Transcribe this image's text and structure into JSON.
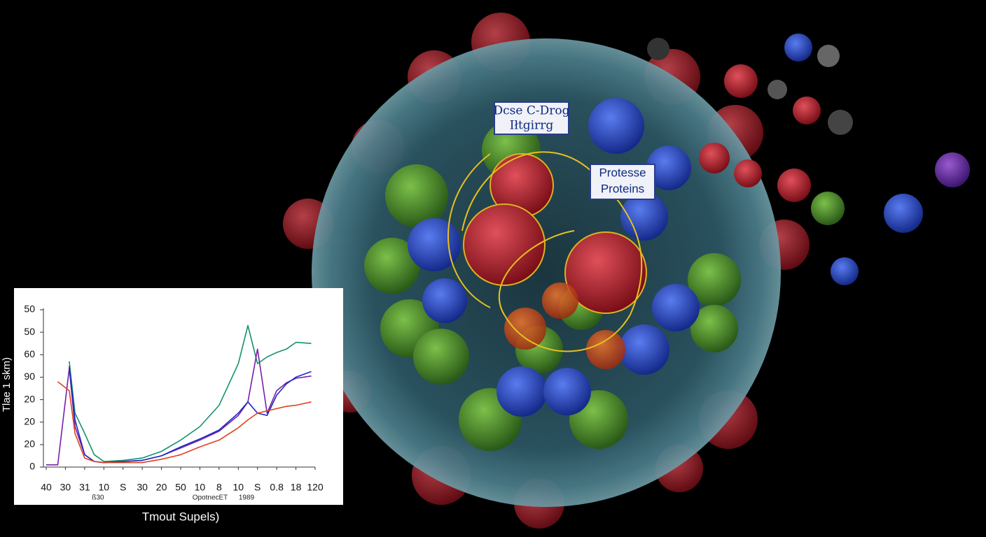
{
  "annotations": [
    {
      "lines": [
        "Dcse C-Drog",
        "Iłtgirrg"
      ]
    },
    {
      "lines": [
        "Protesse",
        "Proteins"
      ]
    }
  ],
  "chart_data": {
    "type": "line",
    "ylabel": "Tlae 1 skm)",
    "xlabel": "Tmout Supels)",
    "x_annotations": [
      "ß30",
      "OpotnecET",
      "1989"
    ],
    "xlim": [
      0,
      14
    ],
    "ylim": [
      0,
      70
    ],
    "xticks": [
      {
        "value": 0,
        "label": "40"
      },
      {
        "value": 1,
        "label": "30"
      },
      {
        "value": 2,
        "label": "31"
      },
      {
        "value": 3,
        "label": "10"
      },
      {
        "value": 4,
        "label": "S"
      },
      {
        "value": 5,
        "label": "30"
      },
      {
        "value": 6,
        "label": "20"
      },
      {
        "value": 7,
        "label": "50"
      },
      {
        "value": 8,
        "label": "10"
      },
      {
        "value": 9,
        "label": "8"
      },
      10,
      {
        "value": 11,
        "label": "S"
      },
      {
        "value": 12,
        "label": "0.8"
      },
      {
        "value": 13,
        "label": "18"
      },
      {
        "value": 14,
        "label": "120"
      }
    ],
    "yticks": [
      0,
      {
        "value": 10,
        "label": "20"
      },
      {
        "value": 20,
        "label": "20"
      },
      {
        "value": 30,
        "label": "20"
      },
      {
        "value": 40,
        "label": "90"
      },
      {
        "value": 50,
        "label": "60"
      },
      {
        "value": 60,
        "label": "50"
      },
      {
        "value": 70,
        "label": "50"
      }
    ],
    "x": [
      0,
      0.6,
      1.2,
      1.5,
      2,
      2.5,
      3,
      4,
      5,
      6,
      7,
      8,
      9,
      10,
      10.5,
      11,
      11.5,
      12,
      12.5,
      13,
      13.8
    ],
    "series": [
      {
        "color": "#14936a",
        "values": [
          null,
          null,
          47,
          24,
          15,
          5.5,
          2.5,
          3,
          4,
          7,
          12,
          18,
          27.5,
          46,
          63,
          46,
          49,
          51,
          52.5,
          55.5,
          55
        ]
      },
      {
        "color": "#7a1fa8",
        "values": [
          1,
          1,
          44,
          18,
          5.5,
          2.5,
          2,
          2.5,
          3,
          5,
          8.5,
          12,
          16,
          23,
          29,
          52.5,
          24,
          34,
          37.5,
          39.5,
          40.5
        ]
      },
      {
        "color": "#1a2bc4",
        "values": [
          null,
          null,
          45,
          21,
          5.5,
          2.5,
          2,
          2.5,
          3,
          5,
          9,
          12.5,
          16.5,
          24,
          29,
          24,
          23,
          32,
          37,
          40,
          42.5
        ]
      },
      {
        "color": "#e0401e",
        "values": [
          null,
          38,
          34,
          15,
          4,
          2.5,
          2,
          2,
          2,
          3.5,
          5.5,
          9,
          12,
          17.5,
          21,
          24,
          25,
          26,
          27,
          27.5,
          29
        ]
      }
    ]
  }
}
